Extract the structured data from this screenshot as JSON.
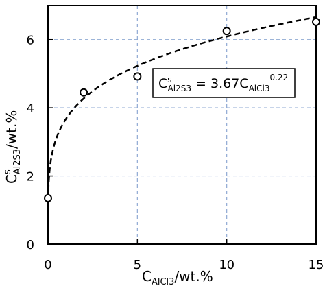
{
  "chart_data": {
    "type": "scatter",
    "x": [
      0,
      2,
      5,
      10,
      15
    ],
    "y": [
      1.35,
      4.45,
      4.92,
      6.25,
      6.52
    ],
    "fit": {
      "type": "power",
      "coefficient": 3.67,
      "exponent": 0.22,
      "style": "dashed"
    },
    "xlim": [
      0,
      15
    ],
    "ylim": [
      0,
      7
    ],
    "x_ticks": [
      "0",
      "5",
      "10",
      "15"
    ],
    "y_ticks": [
      "0",
      "2",
      "4",
      "6"
    ],
    "xlabel": {
      "main": "C",
      "sub": "AlCl3",
      "unit": "/wt.%"
    },
    "ylabel": {
      "main": "C",
      "sup": "s",
      "sub": "Al2S3",
      "unit": "/wt.%"
    },
    "equation": {
      "lhs_main": "C",
      "lhs_sup": "s",
      "lhs_sub": "Al2S3",
      "eq": " = 3.67C",
      "rhs_sub": "AlCl3",
      "rhs_sup": "0.22"
    },
    "grid": true,
    "grid_color": "#8fa9d3",
    "marker": "open-circle"
  }
}
